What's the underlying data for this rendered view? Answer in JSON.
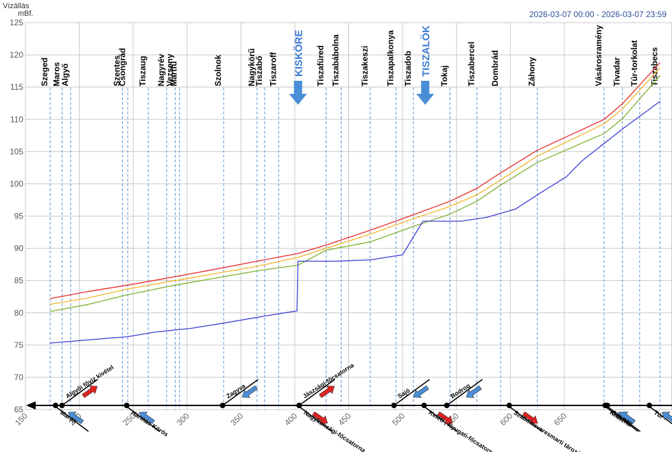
{
  "header": {
    "y_title_line1": "Vízállás",
    "y_title_line2": "mBf.",
    "date_range": "2026-03-07 00:00 - 2026-03-07 23:59"
  },
  "chart_data": {
    "type": "line",
    "xlim": [
      150,
      750
    ],
    "ylim": [
      65,
      125
    ],
    "x_ticks": [
      150,
      200,
      250,
      300,
      350,
      400,
      450,
      500,
      550,
      600,
      650
    ],
    "y_ticks": [
      65,
      70,
      75,
      80,
      85,
      90,
      95,
      100,
      105,
      110,
      115,
      120,
      125
    ],
    "grid": true,
    "stations": [
      {
        "name": "Szeged",
        "x": 173.0
      },
      {
        "name": "Maros",
        "x": 184.0
      },
      {
        "name": "Algyő",
        "x": 192.0
      },
      {
        "name": "Szentes",
        "x": 240.0
      },
      {
        "name": "Csongrád",
        "x": 245.0
      },
      {
        "name": "Tiszaug",
        "x": 264.0
      },
      {
        "name": "Nagyrév",
        "x": 281.0
      },
      {
        "name": "Vezseny",
        "x": 289.0
      },
      {
        "name": "Martfű",
        "x": 293.0
      },
      {
        "name": "Szolnok",
        "x": 334.0
      },
      {
        "name": "Nagykörű",
        "x": 365.0
      },
      {
        "name": "Tiszabő",
        "x": 372.0
      },
      {
        "name": "Tiszaroff",
        "x": 385.0
      },
      {
        "name": "Tiszafüred",
        "x": 429.0
      },
      {
        "name": "Tiszabábolna",
        "x": 443.0
      },
      {
        "name": "Tiszakeszi",
        "x": 470.0
      },
      {
        "name": "Tiszapalkonya",
        "x": 494.0
      },
      {
        "name": "Tiszadob",
        "x": 510.0
      },
      {
        "name": "Tokaj",
        "x": 544.0
      },
      {
        "name": "Tiszabercel",
        "x": 569.0
      },
      {
        "name": "Dombrád",
        "x": 591.0
      },
      {
        "name": "Záhony",
        "x": 625.0
      },
      {
        "name": "Vásárosramény",
        "x": 687.0
      },
      {
        "name": "Tivadar",
        "x": 704.0
      },
      {
        "name": "Túr-torkolat",
        "x": 720.0
      },
      {
        "name": "Tiszabecs",
        "x": 739.0
      }
    ],
    "dams": [
      {
        "name": "KISKÖRE",
        "x": 403.0
      },
      {
        "name": "TISZALÖK",
        "x": 521.0
      }
    ],
    "series": [
      {
        "color": "#e8292b",
        "points": [
          [
            173,
            82.2
          ],
          [
            208,
            83.3
          ],
          [
            245,
            84.3
          ],
          [
            289,
            85.6
          ],
          [
            334,
            87.0
          ],
          [
            365,
            88.0
          ],
          [
            403,
            89.2
          ],
          [
            429,
            90.5
          ],
          [
            470,
            92.8
          ],
          [
            510,
            95.2
          ],
          [
            544,
            97.3
          ],
          [
            569,
            99.3
          ],
          [
            591,
            101.7
          ],
          [
            625,
            105.2
          ],
          [
            687,
            110.0
          ],
          [
            704,
            112.4
          ],
          [
            739,
            118.8
          ]
        ]
      },
      {
        "color": "#f0b62a",
        "points": [
          [
            173,
            81.3
          ],
          [
            208,
            82.3
          ],
          [
            245,
            83.7
          ],
          [
            289,
            85.0
          ],
          [
            334,
            86.3
          ],
          [
            365,
            87.2
          ],
          [
            403,
            88.6
          ],
          [
            429,
            90.0
          ],
          [
            470,
            92.2
          ],
          [
            510,
            94.6
          ],
          [
            544,
            96.5
          ],
          [
            569,
            98.3
          ],
          [
            591,
            100.6
          ],
          [
            625,
            104.3
          ],
          [
            687,
            109.3
          ],
          [
            704,
            111.6
          ],
          [
            739,
            118.0
          ]
        ]
      },
      {
        "color": "#7cb02e",
        "points": [
          [
            173,
            80.2
          ],
          [
            208,
            81.3
          ],
          [
            245,
            82.8
          ],
          [
            289,
            84.3
          ],
          [
            334,
            85.6
          ],
          [
            365,
            86.5
          ],
          [
            403,
            87.4
          ],
          [
            429,
            89.7
          ],
          [
            470,
            91.0
          ],
          [
            510,
            93.4
          ],
          [
            544,
            95.3
          ],
          [
            569,
            97.3
          ],
          [
            591,
            99.8
          ],
          [
            625,
            103.3
          ],
          [
            687,
            107.8
          ],
          [
            704,
            110.1
          ],
          [
            739,
            116.8
          ]
        ]
      },
      {
        "color": "#3d3fd4",
        "points": [
          [
            173,
            75.3
          ],
          [
            208,
            75.8
          ],
          [
            245,
            76.3
          ],
          [
            270,
            77.0
          ],
          [
            304,
            77.6
          ],
          [
            334,
            78.4
          ],
          [
            372,
            79.5
          ],
          [
            402,
            80.3
          ],
          [
            403,
            88.0
          ],
          [
            438,
            88.0
          ],
          [
            470,
            88.2
          ],
          [
            500,
            89.0
          ],
          [
            519,
            94.2
          ],
          [
            554,
            94.2
          ],
          [
            578,
            94.8
          ],
          [
            605,
            96.1
          ],
          [
            628,
            98.6
          ],
          [
            652,
            101.1
          ],
          [
            666,
            103.5
          ],
          [
            704,
            108.5
          ],
          [
            739,
            112.8
          ]
        ]
      }
    ],
    "tributaries": [
      {
        "name": "Maros",
        "x": 178.0,
        "side": "left",
        "arrow": "in",
        "anchor": "bottom"
      },
      {
        "name": "Algyői főviz kivétel",
        "x": 184.0,
        "side": "left",
        "arrow": "out",
        "anchor": "top"
      },
      {
        "name": "Hármas-Körös",
        "x": 244.0,
        "side": "left",
        "arrow": "in",
        "anchor": "bottom"
      },
      {
        "name": "Zagyva",
        "x": 333.0,
        "side": "right",
        "arrow": "in",
        "anchor": "top"
      },
      {
        "name": "Jászsági-főcsatorna",
        "x": 404.0,
        "side": "right",
        "arrow": "out",
        "anchor": "top"
      },
      {
        "name": "Nagykunsági-főcsatorna",
        "x": 404.0,
        "side": "left",
        "arrow": "out",
        "anchor": "bottom"
      },
      {
        "name": "Sajó",
        "x": 492.0,
        "side": "right",
        "arrow": "in",
        "anchor": "top"
      },
      {
        "name": "Keleti-, Nyugati-főcsatorna",
        "x": 520.0,
        "side": "left",
        "arrow": "out",
        "anchor": "bottom"
      },
      {
        "name": "Bodrog",
        "x": 541.0,
        "side": "right",
        "arrow": "in",
        "anchor": "top"
      },
      {
        "name": "Szabolcsveresmarti tározó",
        "x": 599.0,
        "side": "left",
        "arrow": "out",
        "anchor": "bottom"
      },
      {
        "name": "Kraszna",
        "x": 688.0,
        "side": "left",
        "arrow": "in",
        "anchor": "bottom"
      },
      {
        "name": "Szamos",
        "x": 690.0,
        "side": "left",
        "arrow": "in",
        "anchor": "bottom"
      },
      {
        "name": "Túr",
        "x": 729.0,
        "side": "left",
        "arrow": "in",
        "anchor": "bottom"
      }
    ]
  }
}
